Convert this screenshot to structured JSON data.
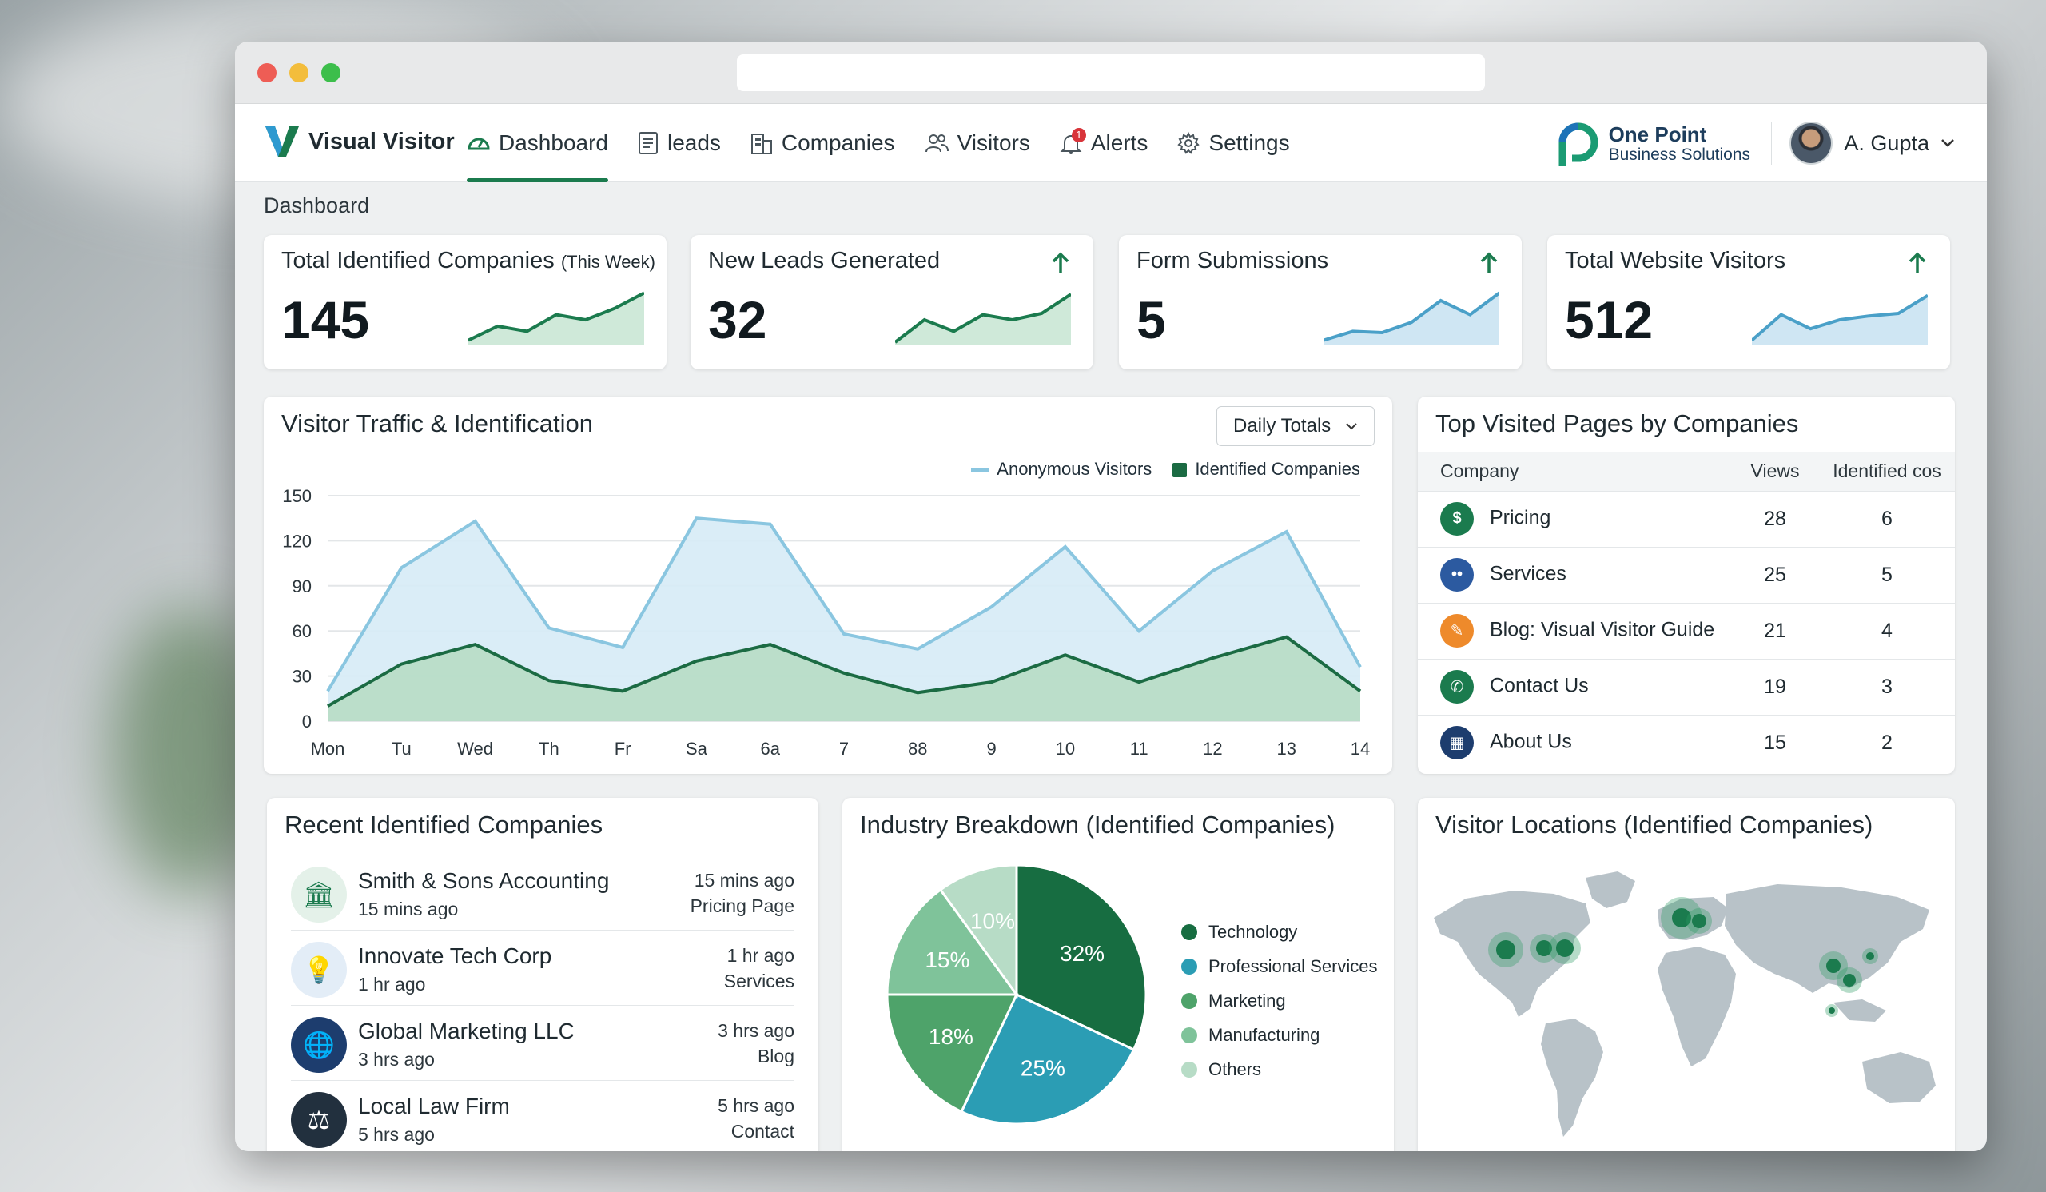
{
  "app": {
    "name": "Visual Visitor"
  },
  "nav": {
    "items": [
      {
        "label": "Dashboard",
        "icon": "gauge-icon",
        "active": true
      },
      {
        "label": "leads",
        "icon": "document-icon"
      },
      {
        "label": "Companies",
        "icon": "building-icon"
      },
      {
        "label": "Visitors",
        "icon": "users-icon"
      },
      {
        "label": "Alerts",
        "icon": "bell-icon",
        "badge": "1"
      },
      {
        "label": "Settings",
        "icon": "gear-icon"
      }
    ]
  },
  "partner": {
    "title": "One Point",
    "subtitle": "Business Solutions"
  },
  "user": {
    "name": "A. Gupta"
  },
  "breadcrumb": "Dashboard",
  "stats": [
    {
      "title": "Total Identified Companies",
      "qualifier": "(This Week)",
      "value": "145",
      "trend": [
        8,
        30,
        22,
        48,
        40,
        58,
        82
      ],
      "color": "#1b7b4e",
      "fill": "#cfe9d9",
      "arrow": false
    },
    {
      "title": "New Leads Generated",
      "qualifier": "",
      "value": "32",
      "trend": [
        5,
        40,
        22,
        48,
        40,
        50,
        80
      ],
      "color": "#1b7b4e",
      "fill": "#cfe9d9",
      "arrow": true
    },
    {
      "title": "Form Submissions",
      "qualifier": "",
      "value": "5",
      "trend": [
        8,
        22,
        20,
        36,
        70,
        48,
        82
      ],
      "color": "#4aa0c8",
      "fill": "#cfe6f3",
      "arrow": true
    },
    {
      "title": "Total Website Visitors",
      "qualifier": "",
      "value": "512",
      "trend": [
        8,
        48,
        26,
        40,
        46,
        50,
        78
      ],
      "color": "#4aa0c8",
      "fill": "#cfe6f3",
      "arrow": true
    }
  ],
  "traffic": {
    "title": "Visitor Traffic & Identification",
    "dropdown": "Daily Totals",
    "legend": [
      "Anonymous Visitors",
      "Identified Companies"
    ]
  },
  "chart_data": {
    "type": "area",
    "categories": [
      "Mon",
      "Tu",
      "Wed",
      "Th",
      "Fr",
      "Sa",
      "6a",
      "7",
      "88",
      "9",
      "10",
      "11",
      "12",
      "13",
      "14"
    ],
    "series": [
      {
        "name": "Anonymous Visitors",
        "values": [
          20,
          102,
          133,
          62,
          49,
          135,
          131,
          58,
          48,
          76,
          116,
          60,
          100,
          126,
          36
        ],
        "color": "#8ac6e0"
      },
      {
        "name": "Identified Companies",
        "values": [
          10,
          38,
          51,
          27,
          20,
          40,
          51,
          32,
          19,
          26,
          44,
          26,
          42,
          56,
          20
        ],
        "color": "#1b6b43"
      }
    ],
    "yticks": [
      0,
      30,
      60,
      90,
      120,
      150
    ],
    "ylim": [
      0,
      150
    ],
    "grid": true,
    "legend": "top-right"
  },
  "top_pages": {
    "title": "Top Visited Pages by Companies",
    "headers": [
      "Company",
      "Views",
      "Identified cos"
    ],
    "rows": [
      {
        "page": "Pricing",
        "views": "28",
        "cos": "6",
        "icon": "dollar-icon",
        "color": "#1b7b4e"
      },
      {
        "page": "Services",
        "views": "25",
        "cos": "5",
        "icon": "people-icon",
        "color": "#2c5aa0"
      },
      {
        "page": "Blog: Visual Visitor Guide",
        "views": "21",
        "cos": "4",
        "icon": "pencil-icon",
        "color": "#ee8a2b"
      },
      {
        "page": "Contact Us",
        "views": "19",
        "cos": "3",
        "icon": "phone-icon",
        "color": "#1b7b4e"
      },
      {
        "page": "About Us",
        "views": "15",
        "cos": "2",
        "icon": "office-icon",
        "color": "#1d3d6e"
      }
    ]
  },
  "recent": {
    "title": "Recent Identified Companies",
    "rows": [
      {
        "name": "Smith & Sons Accounting",
        "sub": "15 mins ago",
        "time": "15 mins ago",
        "page": "Pricing Page",
        "icon": "bank-icon"
      },
      {
        "name": "Innovate Tech Corp",
        "sub": "1 hr ago",
        "time": "1 hr ago",
        "page": "Services",
        "icon": "lightbulb-icon"
      },
      {
        "name": "Global Marketing LLC",
        "sub": "3 hrs ago",
        "time": "3 hrs ago",
        "page": "Blog",
        "icon": "globe-icon"
      },
      {
        "name": "Local Law Firm",
        "sub": "5 hrs ago",
        "time": "5 hrs ago",
        "page": "Contact",
        "icon": "scales-icon"
      }
    ]
  },
  "industry": {
    "title": "Industry Breakdown (Identified Companies)",
    "slices": [
      {
        "label": "Technology",
        "value": 32,
        "text": "32%",
        "color": "#176d41"
      },
      {
        "label": "Professional Services",
        "value": 25,
        "text": "25%",
        "color": "#2b9db4"
      },
      {
        "label": "Marketing",
        "value": 18,
        "text": "18%",
        "color": "#4ea36a"
      },
      {
        "label": "Manufacturing",
        "value": 15,
        "text": "15%",
        "color": "#7fc39a"
      },
      {
        "label": "Others",
        "value": 10,
        "text": "10%",
        "color": "#b7dcc6"
      }
    ]
  },
  "locations": {
    "title": "Visitor Locations (Identified Companies)"
  }
}
